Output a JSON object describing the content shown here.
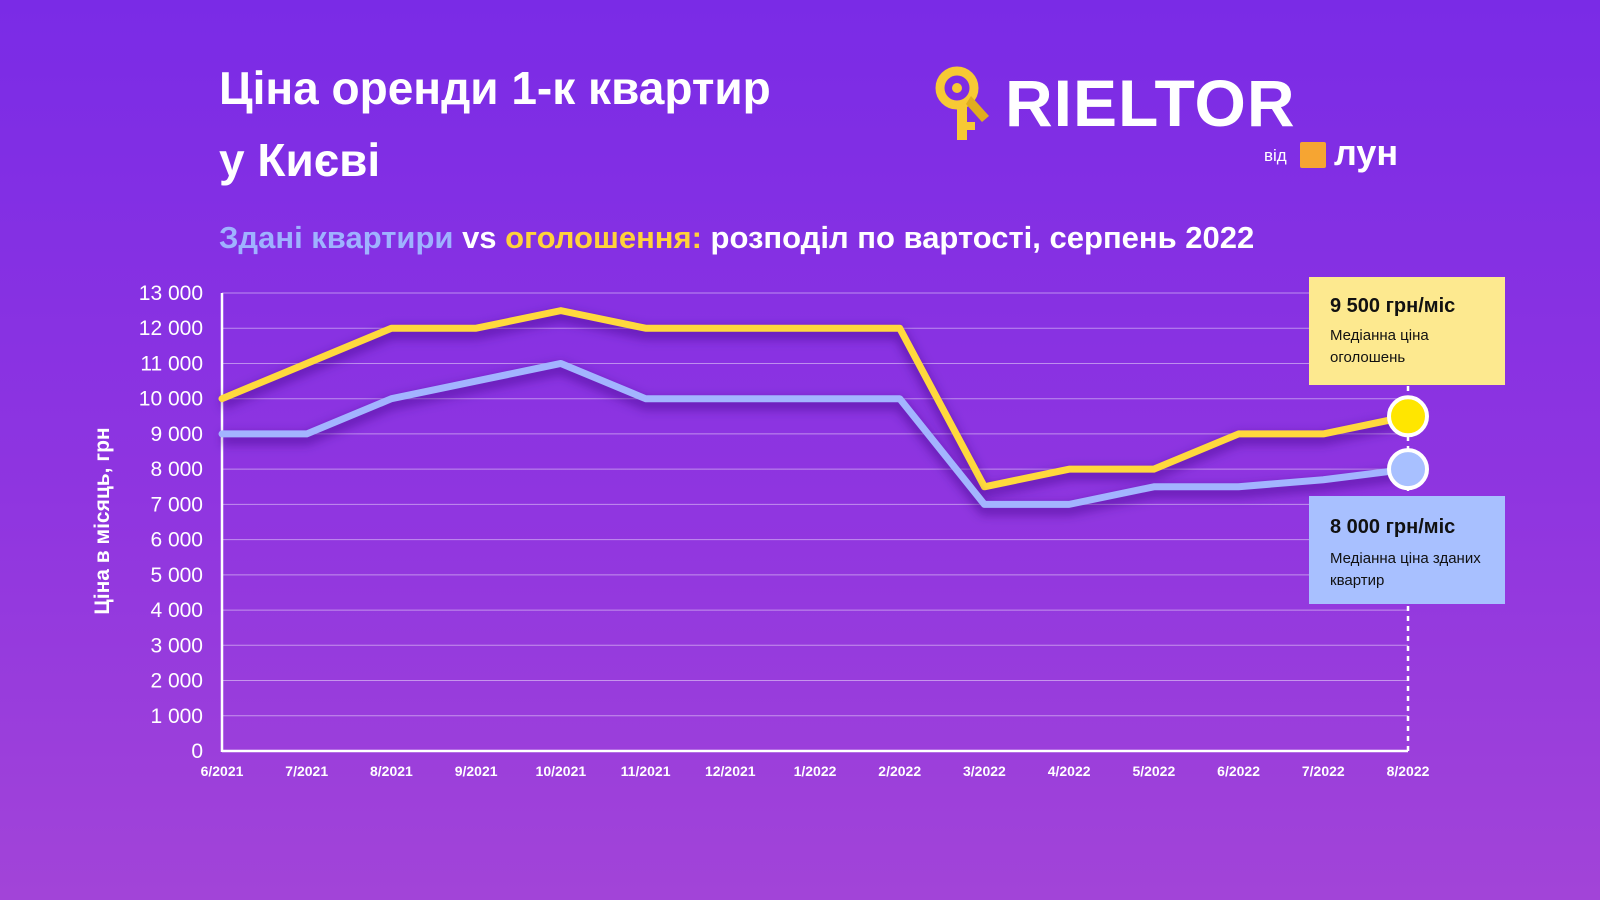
{
  "header": {
    "title_line1": "Ціна оренди 1-к квартир",
    "title_line2": "у Києві"
  },
  "logo": {
    "brand": "RIELTOR",
    "sub_prefix": "від",
    "sub_brand": "лун",
    "key_icon": "key-icon",
    "colors": {
      "key": "#f7c934",
      "square": "#f6a532"
    }
  },
  "subtitle": {
    "part1": "Здані квартири",
    "part2": " vs ",
    "part3": "оголошення:",
    "part4": " розподіл по вартості, серпень 2022"
  },
  "callouts": {
    "listing": {
      "value": "9 500 грн/міс",
      "desc": "Медіанна ціна оголошень"
    },
    "rented": {
      "value": "8 000 грн/міс",
      "desc": "Медіанна ціна зданих квартир"
    }
  },
  "chart_data": {
    "type": "line",
    "xlabel": "",
    "ylabel": "Ціна в місяць, грн",
    "ylim": [
      0,
      13000
    ],
    "yticks": [
      0,
      1000,
      2000,
      3000,
      4000,
      5000,
      6000,
      7000,
      8000,
      9000,
      10000,
      11000,
      12000,
      13000
    ],
    "ytick_labels": [
      "0",
      "1 000",
      "2 000",
      "3 000",
      "4 000",
      "5 000",
      "6 000",
      "7 000",
      "8 000",
      "9 000",
      "10 000",
      "11 000",
      "12 000",
      "13 000"
    ],
    "categories": [
      "6/2021",
      "7/2021",
      "8/2021",
      "9/2021",
      "10/2021",
      "11/2021",
      "12/2021",
      "1/2022",
      "2/2022",
      "3/2022",
      "4/2022",
      "5/2022",
      "6/2022",
      "7/2022",
      "8/2022"
    ],
    "grid": true,
    "series": [
      {
        "name": "оголошення",
        "color": "#ffd93d",
        "marker_color": "#ffe600",
        "values": [
          10000,
          11000,
          12000,
          12000,
          12500,
          12000,
          12000,
          12000,
          12000,
          7500,
          8000,
          8000,
          9000,
          9000,
          9500
        ]
      },
      {
        "name": "Здані квартири",
        "color": "#a3b4ff",
        "marker_color": "#a8c0ff",
        "values": [
          9000,
          9000,
          10000,
          10500,
          11000,
          10000,
          10000,
          10000,
          10000,
          7000,
          7000,
          7500,
          7500,
          7700,
          8000
        ]
      }
    ]
  }
}
